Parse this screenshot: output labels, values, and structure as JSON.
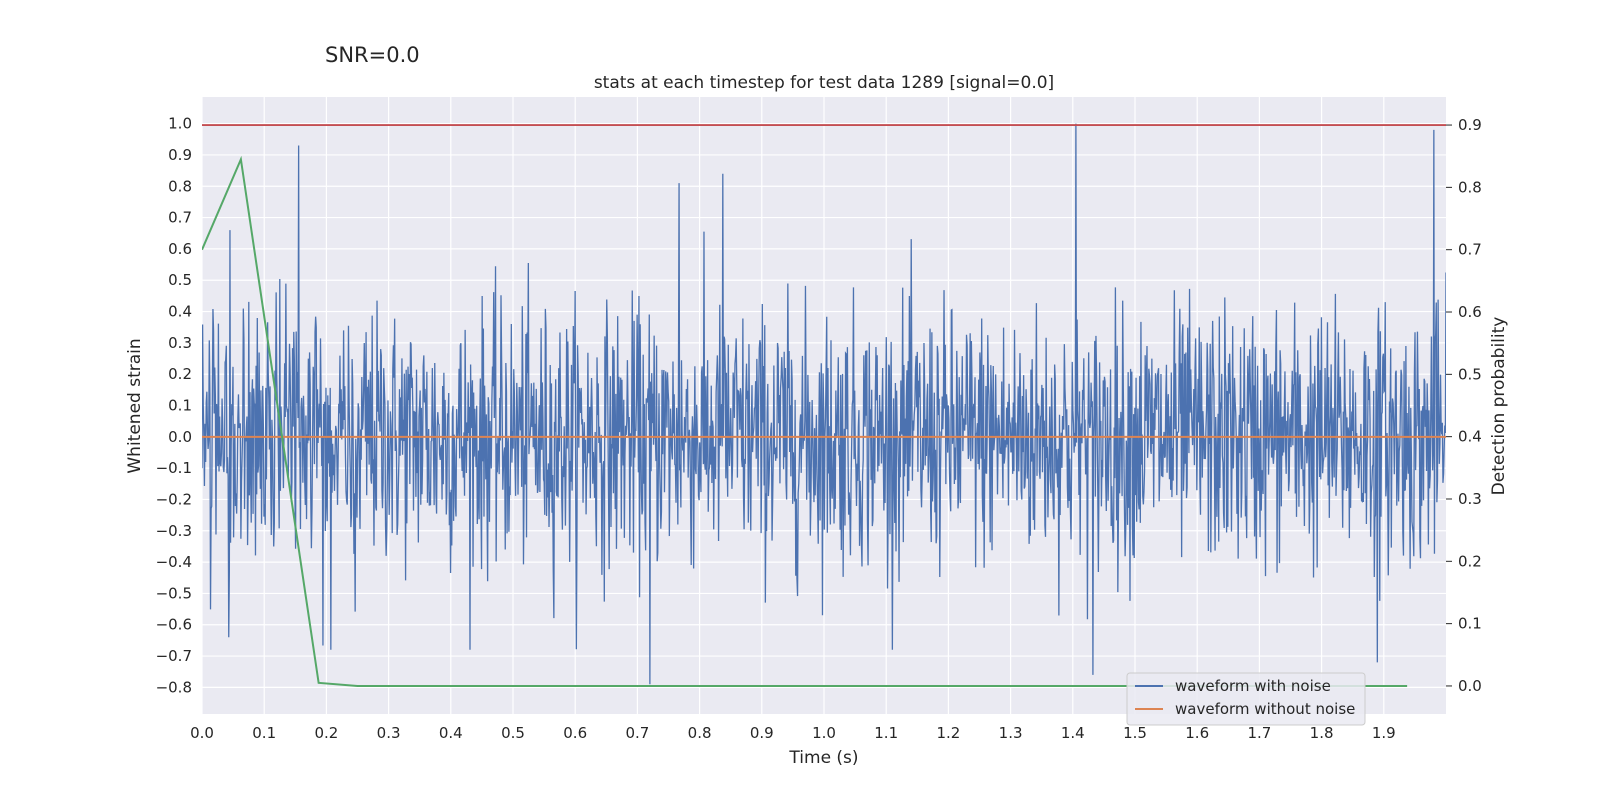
{
  "suptitle": "SNR=0.0",
  "chart_data": {
    "type": "line",
    "title": "stats at each timestep for test data 1289 [signal=0.0]",
    "xlabel": "Time (s)",
    "ylabel": "Whitened strain",
    "y2label": "Detection probability",
    "xlim": [
      0.0,
      2.0
    ],
    "ylim": [
      -0.885,
      1.085
    ],
    "y2lim": [
      -0.045,
      0.945
    ],
    "x_ticks": [
      "0.0",
      "0.1",
      "0.2",
      "0.3",
      "0.4",
      "0.5",
      "0.6",
      "0.7",
      "0.8",
      "0.9",
      "1.0",
      "1.1",
      "1.2",
      "1.3",
      "1.4",
      "1.5",
      "1.6",
      "1.7",
      "1.8",
      "1.9"
    ],
    "y_ticks": [
      "1.0",
      "0.9",
      "0.8",
      "0.7",
      "0.6",
      "0.5",
      "0.4",
      "0.3",
      "0.2",
      "0.1",
      "0.0",
      "−0.1",
      "−0.2",
      "−0.3",
      "−0.4",
      "−0.5",
      "−0.6",
      "−0.7",
      "−0.8"
    ],
    "y2_ticks": [
      "0.9",
      "0.8",
      "0.7",
      "0.6",
      "0.5",
      "0.4",
      "0.3",
      "0.2",
      "0.1",
      "0.0"
    ],
    "grid": true,
    "legend_position": "lower-right",
    "series": [
      {
        "name": "waveform with noise",
        "color": "#4c72b0",
        "kind": "noise",
        "samples": 2048,
        "approx_std": 0.2,
        "notable_points": [
          {
            "x": 0.045,
            "y": 0.66
          },
          {
            "x": 0.043,
            "y": -0.64
          },
          {
            "x": 0.155,
            "y": 0.93
          },
          {
            "x": 0.207,
            "y": -0.68
          },
          {
            "x": 0.72,
            "y": -0.79
          },
          {
            "x": 0.767,
            "y": 0.81
          },
          {
            "x": 0.837,
            "y": 0.84
          },
          {
            "x": 1.405,
            "y": 1.0
          },
          {
            "x": 1.432,
            "y": -0.76
          },
          {
            "x": 1.89,
            "y": -0.72
          },
          {
            "x": 1.98,
            "y": 0.98
          }
        ]
      },
      {
        "name": "waveform without noise",
        "color": "#dd8452",
        "x": [
          0.0,
          2.0
        ],
        "y": [
          0.0,
          0.0
        ]
      },
      {
        "name": "",
        "color": "#55a868",
        "axis": "right",
        "x": [
          0.0,
          0.0625,
          0.1875,
          0.25,
          0.3125,
          1.9375
        ],
        "y": [
          0.7,
          0.845,
          0.005,
          0.0,
          0.0,
          0.0
        ]
      },
      {
        "name": "",
        "color": "#c44e52",
        "axis": "right",
        "x": [
          0.0,
          2.0
        ],
        "y": [
          0.9,
          0.9
        ]
      }
    ]
  }
}
